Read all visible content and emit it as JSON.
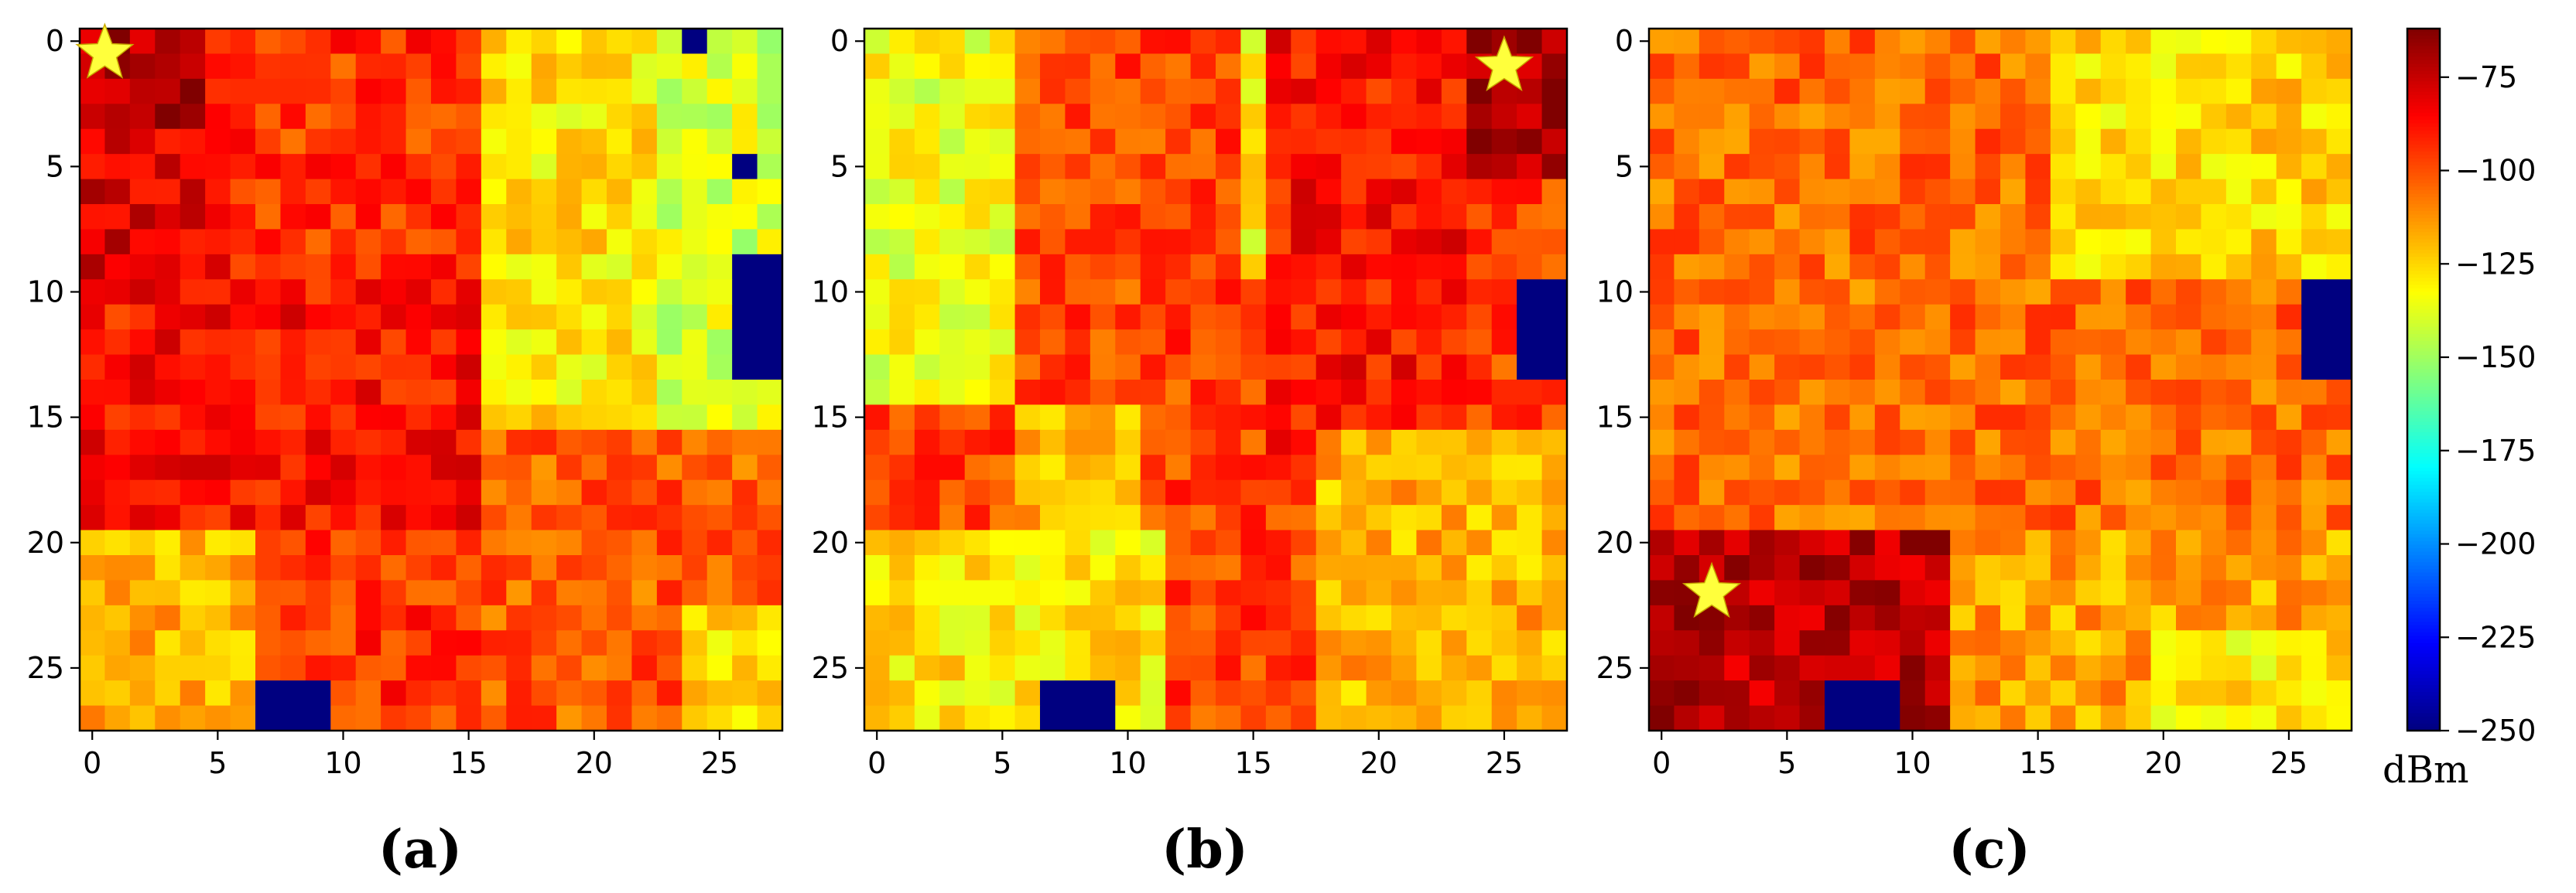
{
  "chart_data": {
    "type": "heatmap",
    "grid_size": [
      28,
      28
    ],
    "x_ticks": [
      0,
      5,
      10,
      15,
      20,
      25
    ],
    "y_ticks": [
      0,
      5,
      10,
      15,
      20,
      25
    ],
    "colorbar": {
      "colormap": "jet",
      "range": [
        -250,
        -62
      ],
      "ticks": [
        -75,
        -100,
        -125,
        -150,
        -175,
        -200,
        -225,
        -250
      ],
      "tick_labels": [
        "−75",
        "−100",
        "−125",
        "−150",
        "−175",
        "−200",
        "−225",
        "−250"
      ],
      "unit": "dBm"
    },
    "panels": [
      {
        "label": "(a)",
        "transmitter": {
          "x": 0.5,
          "y": 0.5
        },
        "base_level": -95,
        "zones": [
          {
            "cols": [
              0,
              4
            ],
            "rows": [
              0,
              3
            ],
            "level": -70
          },
          {
            "cols": [
              0,
              5
            ],
            "rows": [
              4,
              9
            ],
            "level": -80
          },
          {
            "cols": [
              0,
              15
            ],
            "rows": [
              10,
              19
            ],
            "level": -88
          },
          {
            "cols": [
              16,
              22
            ],
            "rows": [
              0,
              15
            ],
            "level": -128
          },
          {
            "cols": [
              23,
              27
            ],
            "rows": [
              0,
              15
            ],
            "level": -140
          },
          {
            "cols": [
              0,
              6
            ],
            "rows": [
              20,
              27
            ],
            "level": -118
          },
          {
            "cols": [
              16,
              27
            ],
            "rows": [
              16,
              27
            ],
            "level": -102
          },
          {
            "cols": [
              24,
              27
            ],
            "rows": [
              23,
              27
            ],
            "level": -125
          }
        ],
        "blocked": [
          {
            "cols": [
              7,
              9
            ],
            "rows": [
              26,
              27
            ]
          },
          {
            "cols": [
              26,
              27
            ],
            "rows": [
              9,
              13
            ]
          },
          {
            "cols": [
              24,
              24
            ],
            "rows": [
              0,
              0
            ]
          },
          {
            "cols": [
              26,
              26
            ],
            "rows": [
              5,
              5
            ]
          }
        ]
      },
      {
        "label": "(b)",
        "transmitter": {
          "x": 25,
          "y": 1
        },
        "base_level": -98,
        "zones": [
          {
            "cols": [
              24,
              27
            ],
            "rows": [
              0,
              5
            ],
            "level": -68
          },
          {
            "cols": [
              16,
              23
            ],
            "rows": [
              0,
              16
            ],
            "level": -88
          },
          {
            "cols": [
              0,
              5
            ],
            "rows": [
              0,
              14
            ],
            "level": -135
          },
          {
            "cols": [
              15,
              15
            ],
            "rows": [
              0,
              9
            ],
            "level": -130
          },
          {
            "cols": [
              6,
              10
            ],
            "rows": [
              15,
              19
            ],
            "level": -118
          },
          {
            "cols": [
              0,
              11
            ],
            "rows": [
              20,
              27
            ],
            "level": -128
          },
          {
            "cols": [
              12,
              17
            ],
            "rows": [
              20,
              27
            ],
            "level": -98
          },
          {
            "cols": [
              18,
              27
            ],
            "rows": [
              16,
              27
            ],
            "level": -118
          }
        ],
        "blocked": [
          {
            "cols": [
              7,
              9
            ],
            "rows": [
              26,
              27
            ]
          },
          {
            "cols": [
              26,
              27
            ],
            "rows": [
              10,
              13
            ]
          }
        ]
      },
      {
        "label": "(c)",
        "transmitter": {
          "x": 2,
          "y": 22
        },
        "base_level": -105,
        "zones": [
          {
            "cols": [
              0,
              11
            ],
            "rows": [
              20,
              27
            ],
            "level": -72
          },
          {
            "cols": [
              16,
              27
            ],
            "rows": [
              0,
              9
            ],
            "level": -125
          },
          {
            "cols": [
              12,
              27
            ],
            "rows": [
              20,
              27
            ],
            "level": -115
          },
          {
            "cols": [
              20,
              27
            ],
            "rows": [
              24,
              27
            ],
            "level": -128
          }
        ],
        "blocked": [
          {
            "cols": [
              7,
              9
            ],
            "rows": [
              26,
              27
            ]
          },
          {
            "cols": [
              26,
              27
            ],
            "rows": [
              10,
              13
            ]
          }
        ]
      }
    ]
  }
}
